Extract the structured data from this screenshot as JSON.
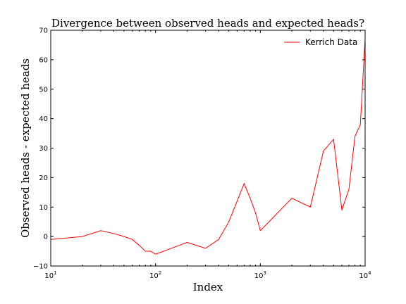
{
  "chart_data": {
    "type": "line",
    "title": "Divergence between observed heads and expected heads?",
    "xlabel": "Index",
    "ylabel": "Observed heads - expected heads",
    "xscale": "log",
    "xlim": [
      10,
      10000
    ],
    "ylim": [
      -10,
      70
    ],
    "grid": false,
    "legend_position": "top-right",
    "x_ticks": [
      10,
      100,
      1000,
      10000
    ],
    "x_tick_labels": [
      {
        "base": "10",
        "exp": "1"
      },
      {
        "base": "10",
        "exp": "2"
      },
      {
        "base": "10",
        "exp": "3"
      },
      {
        "base": "10",
        "exp": "4"
      }
    ],
    "y_ticks": [
      -10,
      0,
      10,
      20,
      30,
      40,
      50,
      60,
      70
    ],
    "y_tick_labels": [
      "−10",
      "0",
      "10",
      "20",
      "30",
      "40",
      "50",
      "60",
      "70"
    ],
    "series": [
      {
        "name": "Kerrich Data",
        "color": "#ff0000",
        "x": [
          10,
          20,
          30,
          40,
          50,
          60,
          70,
          80,
          90,
          100,
          200,
          300,
          400,
          500,
          600,
          700,
          800,
          900,
          1000,
          2000,
          3000,
          4000,
          5000,
          6000,
          7000,
          8000,
          9000,
          10000
        ],
        "y": [
          -1,
          0,
          2,
          1,
          0,
          -1,
          -3,
          -5,
          -5,
          -6,
          -2,
          -4,
          -1,
          5,
          12,
          18,
          13,
          8,
          2,
          13,
          10,
          29,
          33,
          9,
          16,
          34,
          38,
          67
        ]
      }
    ]
  }
}
